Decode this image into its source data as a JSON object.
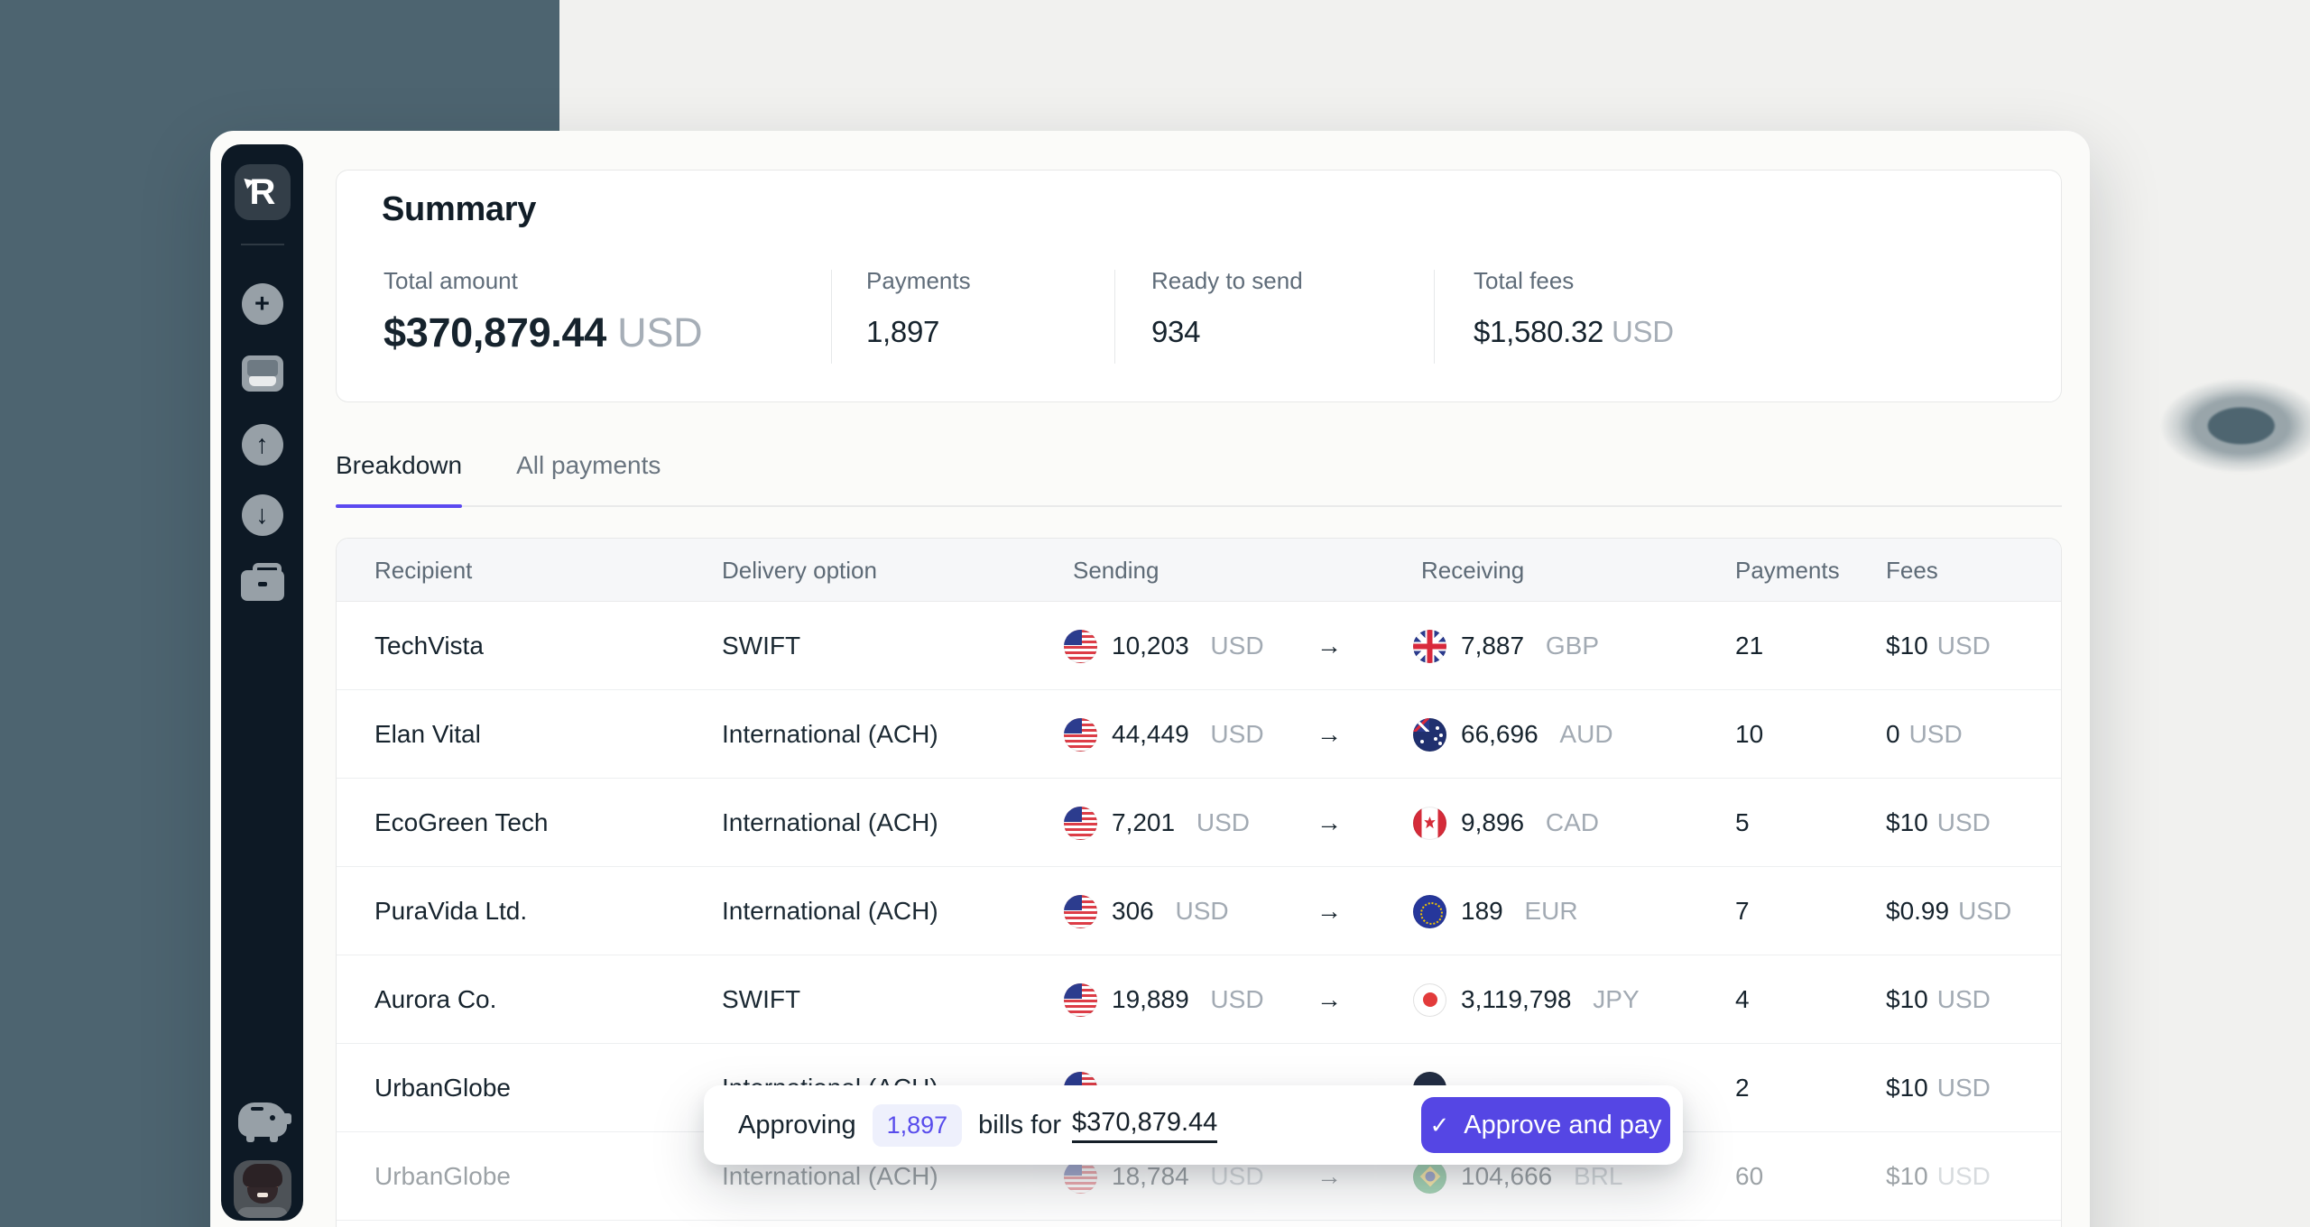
{
  "colors": {
    "accent_indigo": "#5546e4",
    "pill_bg": "#eef0fc",
    "sidebar_bg": "#0d1925",
    "background_teal": "#4d6470",
    "background_gray": "#f1f1ef",
    "table_header_bg": "#f6f7f9",
    "muted_text": "#a2aab3"
  },
  "sidebar": {
    "logo": "R",
    "icons": [
      "add-icon",
      "inbox-icon",
      "send-up-icon",
      "receive-down-icon",
      "briefcase-icon",
      "piggy-bank-icon",
      "user-avatar"
    ]
  },
  "summary": {
    "title": "Summary",
    "stats": [
      {
        "label": "Total amount",
        "value": "$370,879.44",
        "suffix": "USD"
      },
      {
        "label": "Payments",
        "value": "1,897",
        "suffix": ""
      },
      {
        "label": "Ready to send",
        "value": "934",
        "suffix": ""
      },
      {
        "label": "Total fees",
        "value": "$1,580.32",
        "suffix": "USD"
      }
    ]
  },
  "tabs": [
    {
      "label": "Breakdown",
      "active": true
    },
    {
      "label": "All payments",
      "active": false
    }
  ],
  "table": {
    "columns": [
      "Recipient",
      "Delivery option",
      "Sending",
      "Receiving",
      "Payments",
      "Fees"
    ],
    "arrow": "→",
    "rows": [
      {
        "recipient": "TechVista",
        "delivery": "SWIFT",
        "send_flag": "us",
        "send_amount": "10,203",
        "send_currency": "USD",
        "recv_flag": "gb",
        "recv_amount": "7,887",
        "recv_currency": "GBP",
        "payments": "21",
        "fee": "$10",
        "fee_currency": "USD",
        "faded": false
      },
      {
        "recipient": "Elan Vital",
        "delivery": "International (ACH)",
        "send_flag": "us",
        "send_amount": "44,449",
        "send_currency": "USD",
        "recv_flag": "au",
        "recv_amount": "66,696",
        "recv_currency": "AUD",
        "payments": "10",
        "fee": "0",
        "fee_currency": "USD",
        "faded": false
      },
      {
        "recipient": "EcoGreen Tech",
        "delivery": "International (ACH)",
        "send_flag": "us",
        "send_amount": "7,201",
        "send_currency": "USD",
        "recv_flag": "ca",
        "recv_amount": "9,896",
        "recv_currency": "CAD",
        "payments": "5",
        "fee": "$10",
        "fee_currency": "USD",
        "faded": false
      },
      {
        "recipient": "PuraVida Ltd.",
        "delivery": "International (ACH)",
        "send_flag": "us",
        "send_amount": "306",
        "send_currency": "USD",
        "recv_flag": "eu",
        "recv_amount": "189",
        "recv_currency": "EUR",
        "payments": "7",
        "fee": "$0.99",
        "fee_currency": "USD",
        "faded": false
      },
      {
        "recipient": "Aurora Co.",
        "delivery": "SWIFT",
        "send_flag": "us",
        "send_amount": "19,889",
        "send_currency": "USD",
        "recv_flag": "jp",
        "recv_amount": "3,119,798",
        "recv_currency": "JPY",
        "payments": "4",
        "fee": "$10",
        "fee_currency": "USD",
        "faded": false
      },
      {
        "recipient": "UrbanGlobe",
        "delivery": "International (ACH)",
        "send_flag": "us",
        "send_amount": "",
        "send_currency": "",
        "recv_flag": "dark",
        "recv_amount": "",
        "recv_currency": "",
        "payments": "2",
        "fee": "$10",
        "fee_currency": "USD",
        "faded": false
      },
      {
        "recipient": "UrbanGlobe",
        "delivery": "International (ACH)",
        "send_flag": "us",
        "send_amount": "18,784",
        "send_currency": "USD",
        "recv_flag": "br",
        "recv_amount": "104,666",
        "recv_currency": "BRL",
        "payments": "60",
        "fee": "$10",
        "fee_currency": "USD",
        "faded": true
      }
    ]
  },
  "approval_bar": {
    "prefix": "Approving",
    "count": "1,897",
    "middle": "bills for",
    "amount": "$370,879.44",
    "check": "✓",
    "button": "Approve and pay"
  }
}
